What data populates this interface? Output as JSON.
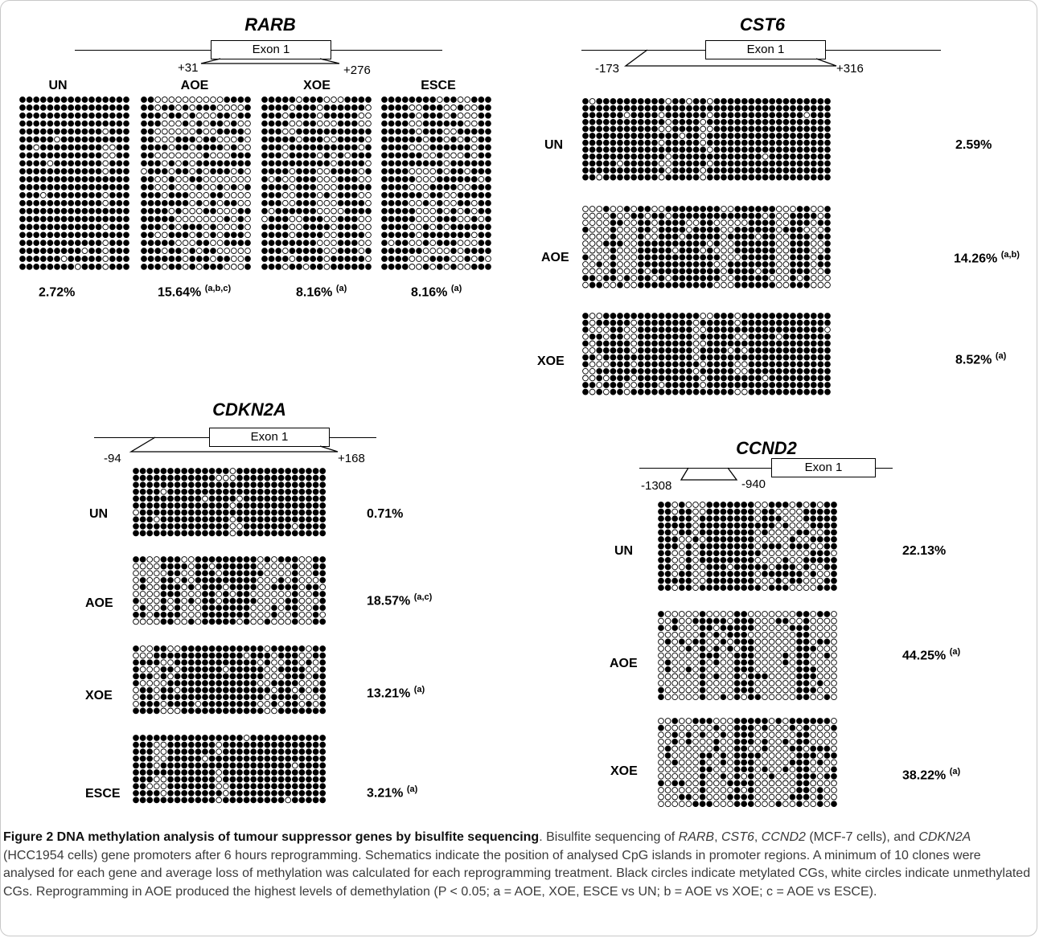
{
  "exon_label": "Exon 1",
  "genes": {
    "rarb": {
      "title": "RARB",
      "start": "+31",
      "end": "+276",
      "samples": [
        {
          "label": "UN",
          "value": "2.72%",
          "sup": ""
        },
        {
          "label": "AOE",
          "value": "15.64%",
          "sup": "(a,b,c)"
        },
        {
          "label": "XOE",
          "value": "8.16%",
          "sup": "(a)"
        },
        {
          "label": "ESCE",
          "value": "8.16%",
          "sup": "(a)"
        }
      ]
    },
    "cst6": {
      "title": "CST6",
      "start": "-173",
      "end": "+316",
      "samples": [
        {
          "label": "UN",
          "value": "2.59%",
          "sup": ""
        },
        {
          "label": "AOE",
          "value": "14.26%",
          "sup": "(a,b)"
        },
        {
          "label": "XOE",
          "value": "8.52%",
          "sup": "(a)"
        }
      ]
    },
    "cdkn2a": {
      "title": "CDKN2A",
      "start": "-94",
      "end": "+168",
      "samples": [
        {
          "label": "UN",
          "value": "0.71%",
          "sup": ""
        },
        {
          "label": "AOE",
          "value": "18.57%",
          "sup": "(a,c)"
        },
        {
          "label": "XOE",
          "value": "13.21%",
          "sup": "(a)"
        },
        {
          "label": "ESCE",
          "value": "3.21%",
          "sup": "(a)"
        }
      ]
    },
    "ccnd2": {
      "title": "CCND2",
      "start": "-1308",
      "end": "-940",
      "samples": [
        {
          "label": "UN",
          "value": "22.13%",
          "sup": ""
        },
        {
          "label": "AOE",
          "value": "44.25%",
          "sup": "(a)"
        },
        {
          "label": "XOE",
          "value": "38.22%",
          "sup": "(a)"
        }
      ]
    }
  },
  "caption": {
    "bold": "Figure 2 DNA methylation analysis of tumour suppressor genes by bisulfite sequencing",
    "t1": ". Bisulfite sequencing of ",
    "g1": "RARB",
    "t2": ", ",
    "g2": "CST6",
    "t3": ", ",
    "g3": "CCND2",
    "t4": " (MCF-7 cells), and ",
    "g4": "CDKN2A",
    "t5": " (HCC1954 cells) gene promoters after 6 hours reprogramming. Schematics indicate the position of analysed CpG islands in promoter regions. A minimum of 10 clones were analysed for each gene and average loss of methylation was calculated for each reprogramming treatment. Black circles indicate metylated CGs, white circles indicate unmethylated CGs. Reprogramming in AOE produced the highest levels of demethylation (P < 0.05; a = AOE, XOE, ESCE vs UN; b = AOE vs XOE; c = AOE vs ESCE)."
  },
  "colors": {
    "methylated": "#000000",
    "unmethylated": "#ffffff"
  }
}
